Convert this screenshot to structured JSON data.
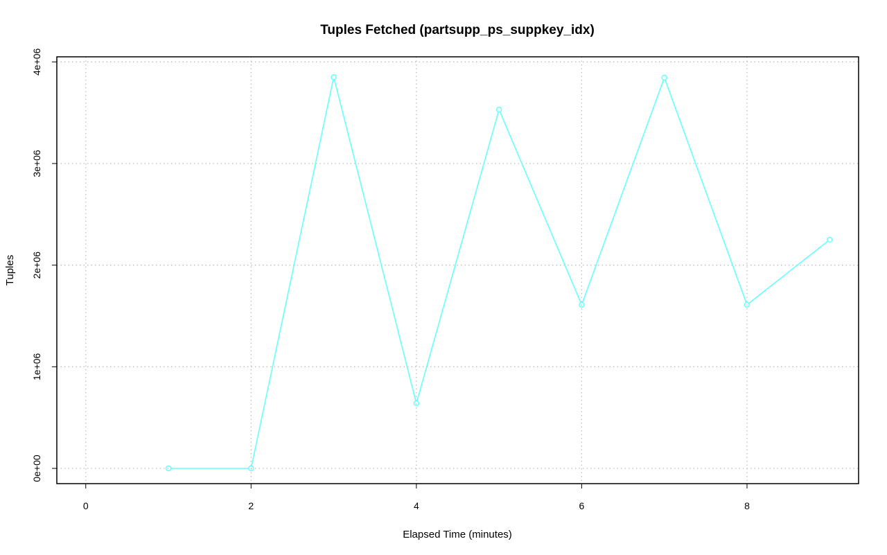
{
  "chart_data": {
    "type": "line",
    "title": "Tuples Fetched (partsupp_ps_suppkey_idx)",
    "xlabel": "Elapsed Time (minutes)",
    "ylabel": "Tuples",
    "xlim": [
      -0.35,
      9.35
    ],
    "ylim": [
      -150000,
      4050000
    ],
    "x_ticks": [
      0,
      2,
      4,
      6,
      8
    ],
    "x_tick_labels": [
      "0",
      "2",
      "4",
      "6",
      "8"
    ],
    "y_ticks": [
      0,
      1000000,
      2000000,
      3000000,
      4000000
    ],
    "y_tick_labels": [
      "0e+00",
      "1e+06",
      "2e+06",
      "3e+06",
      "4e+06"
    ],
    "grid": true,
    "series": [
      {
        "color": "#66ffff",
        "marker": "open-circle",
        "x": [
          1,
          2,
          3,
          4,
          5,
          6,
          7,
          8,
          9
        ],
        "y": [
          0,
          0,
          3850000,
          640000,
          3530000,
          1610000,
          3845000,
          1610000,
          2250000
        ]
      }
    ]
  }
}
